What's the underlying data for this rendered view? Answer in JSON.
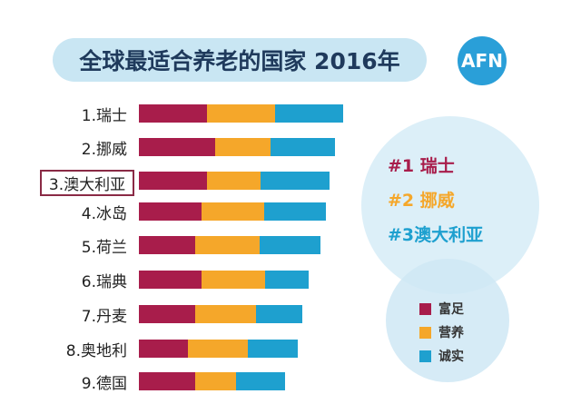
{
  "logo": "AFN",
  "chart_data": {
    "type": "bar",
    "orientation": "horizontal-stacked",
    "title": "全球最适合养老的国家 2016年",
    "categories": [
      "1.瑞士",
      "2.挪威",
      "3.澳大利亚",
      "4.冰岛",
      "5.荷兰",
      "6.瑞典",
      "7.丹麦",
      "8.奥地利",
      "9.德国"
    ],
    "highlighted": "3.澳大利亚",
    "series": [
      {
        "name": "富足",
        "color": "#a81d4b",
        "values": [
          75,
          84,
          75,
          69,
          62,
          69,
          62,
          54,
          62
        ]
      },
      {
        "name": "营养",
        "color": "#f5a72a",
        "values": [
          75,
          61,
          59,
          69,
          71,
          70,
          67,
          66,
          45
        ]
      },
      {
        "name": "诚实",
        "color": "#1ea0cf",
        "values": [
          75,
          71,
          76,
          68,
          67,
          48,
          51,
          55,
          54
        ]
      }
    ],
    "top3": [
      {
        "text": "#1 瑞士",
        "color": "#a81d4b"
      },
      {
        "text": "#2 挪威",
        "color": "#f5a72a"
      },
      {
        "text": "#3澳大利亚",
        "color": "#1ea0cf"
      }
    ],
    "legend_placement": "right"
  }
}
